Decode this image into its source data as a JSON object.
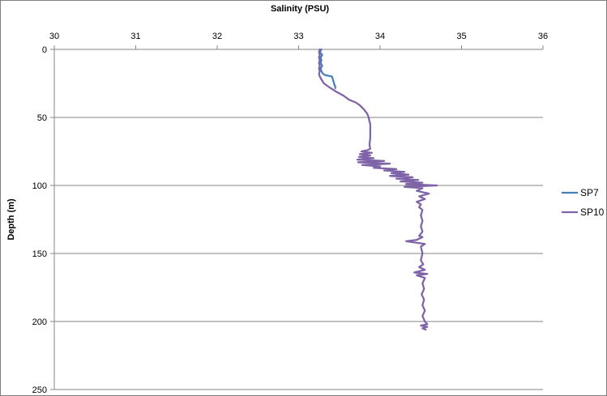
{
  "chart_data": {
    "type": "line",
    "xlabel": "Salinity (PSU)",
    "ylabel": "Depth (m)",
    "xlim": [
      30,
      36
    ],
    "ylim": [
      0,
      250
    ],
    "x_ticks": [
      "30",
      "31",
      "32",
      "33",
      "34",
      "35",
      "36"
    ],
    "y_ticks": [
      "0",
      "50",
      "100",
      "150",
      "200",
      "250"
    ],
    "x_axis_position": "top",
    "y_axis_reversed": true,
    "grid": "horizontal",
    "legend_position": "right",
    "series": [
      {
        "name": "SP7",
        "color": "#4a7ebb",
        "points": [
          [
            33.28,
            0
          ],
          [
            33.26,
            2
          ],
          [
            33.29,
            4
          ],
          [
            33.27,
            6
          ],
          [
            33.28,
            8
          ],
          [
            33.27,
            10
          ],
          [
            33.29,
            12
          ],
          [
            33.27,
            14
          ],
          [
            33.28,
            16
          ],
          [
            33.3,
            18
          ],
          [
            33.33,
            19
          ],
          [
            33.38,
            19.5
          ],
          [
            33.41,
            20
          ],
          [
            33.42,
            22
          ],
          [
            33.43,
            24
          ],
          [
            33.44,
            26
          ],
          [
            33.45,
            27.5
          ],
          [
            33.45,
            28.5
          ]
        ]
      },
      {
        "name": "SP10",
        "color": "#7f63a8",
        "points": [
          [
            33.26,
            0
          ],
          [
            33.25,
            2
          ],
          [
            33.26,
            4
          ],
          [
            33.25,
            6
          ],
          [
            33.26,
            8
          ],
          [
            33.25,
            10
          ],
          [
            33.26,
            12
          ],
          [
            33.25,
            14
          ],
          [
            33.26,
            16
          ],
          [
            33.25,
            18
          ],
          [
            33.26,
            20
          ],
          [
            33.28,
            22
          ],
          [
            33.31,
            25
          ],
          [
            33.38,
            28
          ],
          [
            33.46,
            31
          ],
          [
            33.55,
            34
          ],
          [
            33.62,
            37
          ],
          [
            33.7,
            39
          ],
          [
            33.75,
            41
          ],
          [
            33.8,
            44
          ],
          [
            33.84,
            47
          ],
          [
            33.86,
            50
          ],
          [
            33.87,
            53
          ],
          [
            33.88,
            55
          ],
          [
            33.88,
            60
          ],
          [
            33.88,
            65
          ],
          [
            33.87,
            70
          ],
          [
            33.88,
            73
          ],
          [
            33.85,
            74
          ],
          [
            33.77,
            75
          ],
          [
            33.9,
            76
          ],
          [
            33.75,
            77
          ],
          [
            33.88,
            78
          ],
          [
            33.74,
            79
          ],
          [
            33.92,
            80
          ],
          [
            33.72,
            81
          ],
          [
            34.05,
            82
          ],
          [
            33.73,
            83
          ],
          [
            34.12,
            84
          ],
          [
            33.78,
            85
          ],
          [
            34.0,
            86
          ],
          [
            33.92,
            87
          ],
          [
            34.2,
            88
          ],
          [
            34.05,
            89
          ],
          [
            34.3,
            90
          ],
          [
            34.14,
            91
          ],
          [
            34.35,
            92
          ],
          [
            34.12,
            93
          ],
          [
            34.4,
            94
          ],
          [
            34.2,
            95
          ],
          [
            34.47,
            96
          ],
          [
            34.25,
            97
          ],
          [
            34.52,
            98
          ],
          [
            34.32,
            99
          ],
          [
            34.7,
            100
          ],
          [
            34.3,
            101
          ],
          [
            34.52,
            102
          ],
          [
            34.45,
            104
          ],
          [
            34.6,
            106
          ],
          [
            34.48,
            108
          ],
          [
            34.55,
            110
          ],
          [
            34.45,
            112
          ],
          [
            34.5,
            114
          ],
          [
            34.48,
            116
          ],
          [
            34.52,
            118
          ],
          [
            34.5,
            122
          ],
          [
            34.52,
            126
          ],
          [
            34.5,
            130
          ],
          [
            34.52,
            134
          ],
          [
            34.48,
            137
          ],
          [
            34.52,
            138
          ],
          [
            34.45,
            140
          ],
          [
            34.32,
            141
          ],
          [
            34.55,
            143
          ],
          [
            34.5,
            145
          ],
          [
            34.52,
            150
          ],
          [
            34.5,
            155
          ],
          [
            34.53,
            158
          ],
          [
            34.48,
            160
          ],
          [
            34.55,
            162
          ],
          [
            34.42,
            164
          ],
          [
            34.58,
            165
          ],
          [
            34.45,
            166
          ],
          [
            34.55,
            168
          ],
          [
            34.52,
            172
          ],
          [
            34.54,
            176
          ],
          [
            34.51,
            180
          ],
          [
            34.54,
            184
          ],
          [
            34.52,
            188
          ],
          [
            34.55,
            192
          ],
          [
            34.52,
            196
          ],
          [
            34.55,
            200
          ],
          [
            34.58,
            202
          ],
          [
            34.5,
            203
          ],
          [
            34.58,
            204
          ],
          [
            34.52,
            205
          ],
          [
            34.56,
            206
          ]
        ]
      }
    ]
  }
}
